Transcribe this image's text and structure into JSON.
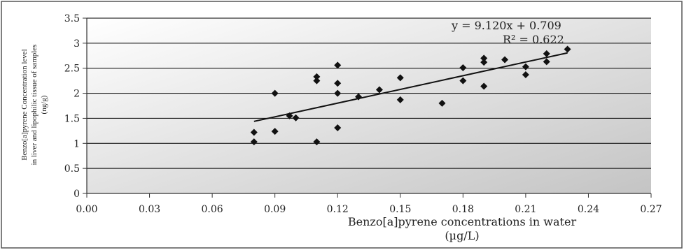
{
  "chart_data": {
    "type": "scatter",
    "title": "",
    "xlabel_line1": "Benzo[a]pyrene concentrations in water",
    "xlabel_line2": "(µg/L)",
    "ylabel_lines": [
      "Benzo[a]pyrene  Concentration level",
      "in liver and lipophilic tissue of samples",
      "(ng/g)"
    ],
    "xlim": [
      0,
      0.27
    ],
    "ylim": [
      0,
      3.5
    ],
    "x_ticks": [
      "0.00",
      "0.03",
      "0.06",
      "0.09",
      "0.12",
      "0.15",
      "0.18",
      "0.21",
      "0.24",
      "0.27"
    ],
    "y_ticks": [
      "0",
      "0.5",
      "1",
      "1.5",
      "2",
      "2.5",
      "3",
      "3.5"
    ],
    "grid": "horizontal",
    "background": "gradient gray",
    "trendline": {
      "slope": 9.12,
      "intercept": 0.709,
      "x_range": [
        0.08,
        0.23
      ],
      "equation": "y = 9.120x + 0.709",
      "r_squared": "R² = 0.622"
    },
    "points": [
      [
        0.08,
        1.03
      ],
      [
        0.08,
        1.22
      ],
      [
        0.09,
        1.24
      ],
      [
        0.09,
        2.0
      ],
      [
        0.097,
        1.55
      ],
      [
        0.1,
        1.51
      ],
      [
        0.11,
        1.03
      ],
      [
        0.11,
        2.25
      ],
      [
        0.11,
        2.33
      ],
      [
        0.12,
        1.31
      ],
      [
        0.12,
        2.0
      ],
      [
        0.12,
        2.2
      ],
      [
        0.12,
        2.56
      ],
      [
        0.13,
        1.93
      ],
      [
        0.14,
        2.07
      ],
      [
        0.15,
        1.87
      ],
      [
        0.15,
        2.31
      ],
      [
        0.17,
        1.8
      ],
      [
        0.18,
        2.25
      ],
      [
        0.18,
        2.51
      ],
      [
        0.19,
        2.14
      ],
      [
        0.19,
        2.62
      ],
      [
        0.19,
        2.7
      ],
      [
        0.2,
        2.67
      ],
      [
        0.21,
        2.37
      ],
      [
        0.21,
        2.53
      ],
      [
        0.22,
        2.63
      ],
      [
        0.22,
        2.79
      ],
      [
        0.23,
        2.88
      ]
    ],
    "colors": {
      "marker": "#111111",
      "trendline": "#111111",
      "gridline": "#000000",
      "plot_bg_light": "#ffffff",
      "plot_bg_dark": "#c4c4c4"
    }
  }
}
